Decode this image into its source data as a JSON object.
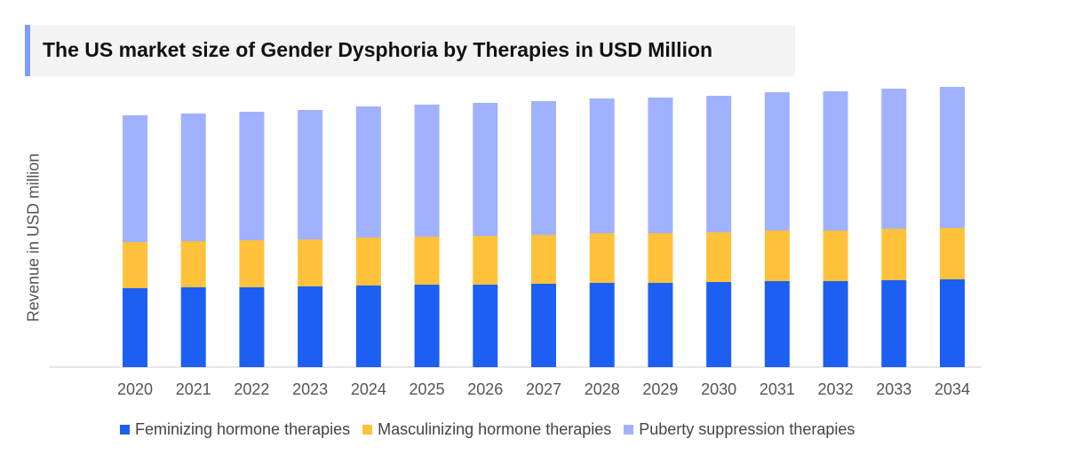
{
  "chart_data": {
    "type": "bar",
    "stacked": true,
    "title": "The US market size of Gender Dysphoria by Therapies in USD Million",
    "xlabel": "",
    "ylabel": "Revenue in USD million",
    "categories": [
      "2020",
      "2021",
      "2022",
      "2023",
      "2024",
      "2025",
      "2026",
      "2027",
      "2028",
      "2029",
      "2030",
      "2031",
      "2032",
      "2033",
      "2034"
    ],
    "series": [
      {
        "name": "Feminizing hormone therapies",
        "color": "#1c5ff2",
        "values": [
          89,
          90,
          90,
          91,
          92,
          93,
          93,
          94,
          95,
          95,
          96,
          97,
          97,
          98,
          99
        ]
      },
      {
        "name": "Masculinizing hormone therapies",
        "color": "#ffc23a",
        "values": [
          52,
          52,
          53,
          53,
          54,
          54,
          55,
          55,
          56,
          56,
          56,
          57,
          57,
          58,
          58
        ]
      },
      {
        "name": "Puberty suppression therapies",
        "color": "#a0b2ff",
        "values": [
          143,
          144,
          145,
          146,
          148,
          149,
          150,
          151,
          152,
          153,
          154,
          156,
          157,
          158,
          159
        ]
      }
    ],
    "ylim": [
      0,
      320
    ],
    "grid": false,
    "legend": "bottom"
  }
}
